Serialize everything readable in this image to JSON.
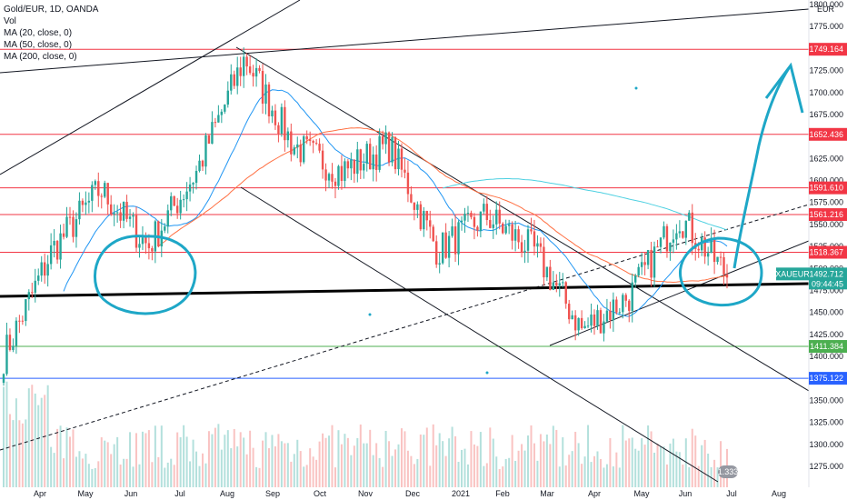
{
  "legend": {
    "symbol": "Gold/EUR, 1D, OANDA",
    "vol": "Vol",
    "ma20": "MA (20, close, 0)",
    "ma50": "MA (50, close, 0)",
    "ma200": "MA (200, close, 0)"
  },
  "currency": "EUR",
  "colors": {
    "up": "#26a69a",
    "down": "#ef5350",
    "ma20": "#2196f3",
    "ma50": "#ff7043",
    "ma200": "#4dd0e1",
    "level_red": "#f23645",
    "level_green": "#4caf50",
    "level_blue": "#2962ff",
    "annotation": "#1ea7c7",
    "price_tag": "#26a69a"
  },
  "chart_data": {
    "type": "candlestick",
    "y_axis": {
      "ylim": [
        1252,
        1800
      ],
      "ticks": [
        "1800.000",
        "1775.000",
        "1750.000",
        "1725.000",
        "1700.000",
        "1675.000",
        "1650.000",
        "1625.000",
        "1600.000",
        "1575.000",
        "1550.000",
        "1525.000",
        "1500.000",
        "1475.000",
        "1450.000",
        "1425.000",
        "1400.000",
        "1375.000",
        "1350.000",
        "1325.000",
        "1300.000",
        "1275.000"
      ]
    },
    "x_axis": {
      "labels": [
        "Apr",
        "May",
        "Jun",
        "Jul",
        "Aug",
        "Sep",
        "Oct",
        "Nov",
        "Dec",
        "2021",
        "Feb",
        "Mar",
        "Apr",
        "May",
        "Jun",
        "Jul",
        "Aug"
      ]
    },
    "levels": [
      {
        "label": "1749.164",
        "value": 1749.164,
        "color": "red"
      },
      {
        "label": "1652.436",
        "value": 1652.436,
        "color": "red"
      },
      {
        "label": "1591.610",
        "value": 1591.61,
        "color": "red"
      },
      {
        "label": "1561.216",
        "value": 1561.216,
        "color": "red"
      },
      {
        "label": "1518.367",
        "value": 1518.367,
        "color": "red"
      },
      {
        "label": "1411.384",
        "value": 1411.384,
        "color": "green"
      },
      {
        "label": "1375.122",
        "value": 1375.122,
        "color": "blue"
      }
    ],
    "last_price": {
      "symbol": "XAUEUR",
      "value": "1492.712",
      "countdown": "09:44:45"
    },
    "approx_close_path": [
      {
        "month": "Mar 2020",
        "close": 1400
      },
      {
        "month": "Apr 2020",
        "close": 1520
      },
      {
        "month": "May 2020",
        "close": 1590
      },
      {
        "month": "Jun 2020",
        "close": 1525
      },
      {
        "month": "Jul 2020",
        "close": 1610
      },
      {
        "month": "Aug 2020",
        "close": 1740
      },
      {
        "month": "Sep 2020",
        "close": 1640
      },
      {
        "month": "Oct 2020",
        "close": 1610
      },
      {
        "month": "Nov 2020",
        "close": 1640
      },
      {
        "month": "Dec 2020",
        "close": 1520
      },
      {
        "month": "Jan 2021",
        "close": 1560
      },
      {
        "month": "Feb 2021",
        "close": 1520
      },
      {
        "month": "Mar 2021",
        "close": 1430
      },
      {
        "month": "Apr 2021",
        "close": 1470
      },
      {
        "month": "May 2021",
        "close": 1560
      },
      {
        "month": "Jun 2021",
        "close": 1493
      }
    ],
    "volume_label": "1.333"
  }
}
